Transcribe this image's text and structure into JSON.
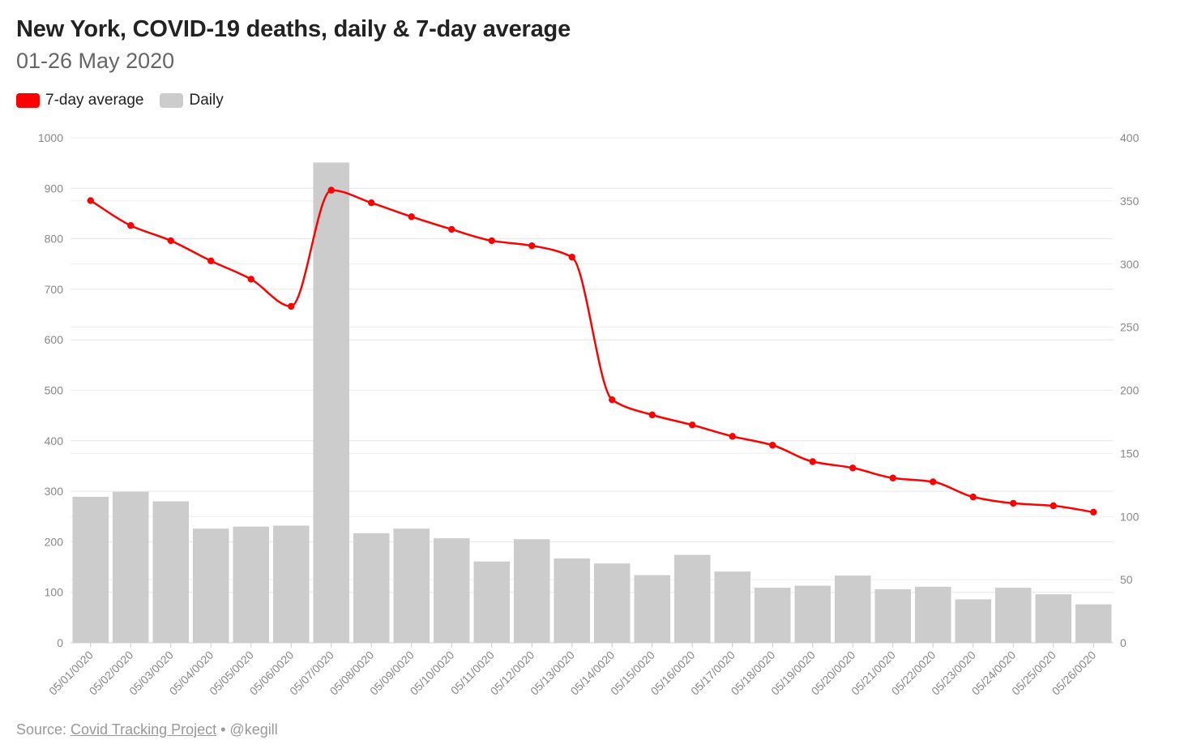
{
  "chart_data": {
    "type": "bar+line",
    "title": "New York, COVID-19 deaths, daily & 7-day average",
    "subtitle": "01-26 May 2020",
    "categories": [
      "05/01/0020",
      "05/02/0020",
      "05/03/0020",
      "05/04/0020",
      "05/05/0020",
      "05/06/0020",
      "05/07/0020",
      "05/08/0020",
      "05/09/0020",
      "05/10/0020",
      "05/11/0020",
      "05/12/0020",
      "05/13/0020",
      "05/14/0020",
      "05/15/0020",
      "05/16/0020",
      "05/17/0020",
      "05/18/0020",
      "05/19/0020",
      "05/20/0020",
      "05/21/0020",
      "05/22/0020",
      "05/23/0020",
      "05/24/0020",
      "05/25/0020",
      "05/26/0020"
    ],
    "series": [
      {
        "name": "Daily",
        "type": "bar",
        "axis": "left",
        "color": "#cccccc",
        "values": [
          289,
          299,
          280,
          226,
          230,
          232,
          951,
          217,
          226,
          207,
          161,
          205,
          167,
          157,
          134,
          174,
          141,
          109,
          113,
          133,
          106,
          111,
          86,
          109,
          96,
          76
        ]
      },
      {
        "name": "7-day average",
        "type": "line",
        "axis": "right",
        "color": "#ff0000",
        "values": [
          350.3,
          330.5,
          318.5,
          302.5,
          288,
          266.5,
          358.5,
          348.5,
          337.5,
          327.5,
          318.5,
          314.5,
          305.5,
          192.5,
          180.5,
          172.5,
          163.5,
          156.5,
          143.5,
          138.5,
          130.5,
          127.5,
          115.5,
          110.5,
          108.5,
          103.5
        ]
      }
    ],
    "y_left": {
      "min": 0,
      "max": 1000,
      "ticks": [
        0,
        100,
        200,
        300,
        400,
        500,
        600,
        700,
        800,
        900,
        1000
      ]
    },
    "y_right": {
      "min": 0,
      "max": 400,
      "ticks": [
        0,
        50,
        100,
        150,
        200,
        250,
        300,
        350,
        400
      ]
    },
    "legend": {
      "placement": "top-left",
      "items": [
        {
          "label": "7-day average",
          "color": "#ff0000"
        },
        {
          "label": "Daily",
          "color": "#cccccc"
        }
      ]
    },
    "grid": true
  },
  "source": {
    "prefix": "Source: ",
    "link_text": "Covid Tracking Project",
    "suffix": " • @kegill"
  }
}
